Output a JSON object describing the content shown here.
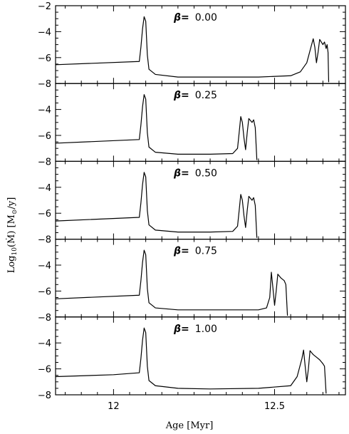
{
  "chart_data": {
    "type": "line",
    "layout": "5 vertically stacked panels sharing the x axis",
    "xlabel": "Age [Myr]",
    "ylabel": "Log10(Ṁ) [M⊙/y]",
    "ylabel_parts": {
      "log": "Log",
      "sub": "10",
      "open": "(",
      "mdot": "Ṁ",
      "close": ")",
      "unit_open": " [M",
      "sun": "⊙",
      "unit_close": "/y]"
    },
    "xlim": [
      11.82,
      12.72
    ],
    "ylim": [
      -8,
      -2
    ],
    "x_ticks": [
      12,
      12.5
    ],
    "x_tick_labels": [
      "12",
      "12.5"
    ],
    "y_ticks_top_panel": [
      -8,
      -6,
      -4,
      -2
    ],
    "y_ticks_other_panels": [
      -8,
      -6,
      -4
    ],
    "y_tick_labels": {
      "-8": "−8",
      "-6": "−6",
      "-4": "−4",
      "-2": "−2"
    },
    "series_color": "#000000",
    "panels": [
      {
        "label_prefix": "β=",
        "label_value": "0.00",
        "points": [
          [
            11.82,
            -6.55
          ],
          [
            12.08,
            -6.3
          ],
          [
            12.085,
            -5.2
          ],
          [
            12.09,
            -3.8
          ],
          [
            12.095,
            -2.85
          ],
          [
            12.1,
            -3.2
          ],
          [
            12.105,
            -5.8
          ],
          [
            12.11,
            -6.9
          ],
          [
            12.13,
            -7.3
          ],
          [
            12.2,
            -7.5
          ],
          [
            12.3,
            -7.5
          ],
          [
            12.45,
            -7.5
          ],
          [
            12.55,
            -7.4
          ],
          [
            12.58,
            -7.1
          ],
          [
            12.6,
            -6.4
          ],
          [
            12.615,
            -5.0
          ],
          [
            12.62,
            -4.55
          ],
          [
            12.625,
            -5.2
          ],
          [
            12.63,
            -6.4
          ],
          [
            12.635,
            -5.6
          ],
          [
            12.64,
            -4.6
          ],
          [
            12.65,
            -5.0
          ],
          [
            12.655,
            -4.8
          ],
          [
            12.66,
            -5.3
          ],
          [
            12.663,
            -5.0
          ],
          [
            12.666,
            -5.6
          ],
          [
            12.668,
            -7.9
          ]
        ]
      },
      {
        "label_prefix": "β=",
        "label_value": "0.25",
        "points": [
          [
            11.82,
            -6.6
          ],
          [
            12.08,
            -6.32
          ],
          [
            12.085,
            -5.2
          ],
          [
            12.09,
            -3.8
          ],
          [
            12.095,
            -2.85
          ],
          [
            12.1,
            -3.2
          ],
          [
            12.105,
            -5.8
          ],
          [
            12.11,
            -6.9
          ],
          [
            12.13,
            -7.3
          ],
          [
            12.2,
            -7.45
          ],
          [
            12.3,
            -7.45
          ],
          [
            12.37,
            -7.4
          ],
          [
            12.385,
            -7.0
          ],
          [
            12.39,
            -5.8
          ],
          [
            12.395,
            -4.55
          ],
          [
            12.4,
            -5.0
          ],
          [
            12.405,
            -6.2
          ],
          [
            12.41,
            -7.1
          ],
          [
            12.415,
            -5.8
          ],
          [
            12.42,
            -4.7
          ],
          [
            12.43,
            -5.0
          ],
          [
            12.435,
            -4.8
          ],
          [
            12.44,
            -5.4
          ],
          [
            12.445,
            -7.9
          ]
        ]
      },
      {
        "label_prefix": "β=",
        "label_value": "0.50",
        "points": [
          [
            11.82,
            -6.6
          ],
          [
            12.08,
            -6.32
          ],
          [
            12.085,
            -5.2
          ],
          [
            12.09,
            -3.8
          ],
          [
            12.095,
            -2.85
          ],
          [
            12.1,
            -3.2
          ],
          [
            12.105,
            -5.8
          ],
          [
            12.11,
            -6.9
          ],
          [
            12.13,
            -7.3
          ],
          [
            12.2,
            -7.45
          ],
          [
            12.3,
            -7.45
          ],
          [
            12.37,
            -7.4
          ],
          [
            12.385,
            -7.0
          ],
          [
            12.39,
            -5.8
          ],
          [
            12.395,
            -4.55
          ],
          [
            12.4,
            -5.0
          ],
          [
            12.405,
            -6.2
          ],
          [
            12.41,
            -7.1
          ],
          [
            12.415,
            -5.8
          ],
          [
            12.42,
            -4.7
          ],
          [
            12.43,
            -5.0
          ],
          [
            12.435,
            -4.8
          ],
          [
            12.44,
            -5.4
          ],
          [
            12.445,
            -7.9
          ]
        ]
      },
      {
        "label_prefix": "β=",
        "label_value": "0.75",
        "points": [
          [
            11.82,
            -6.6
          ],
          [
            12.08,
            -6.32
          ],
          [
            12.085,
            -5.2
          ],
          [
            12.09,
            -3.8
          ],
          [
            12.095,
            -2.85
          ],
          [
            12.1,
            -3.2
          ],
          [
            12.105,
            -5.8
          ],
          [
            12.11,
            -6.9
          ],
          [
            12.13,
            -7.3
          ],
          [
            12.2,
            -7.45
          ],
          [
            12.3,
            -7.45
          ],
          [
            12.45,
            -7.45
          ],
          [
            12.475,
            -7.3
          ],
          [
            12.485,
            -6.5
          ],
          [
            12.49,
            -4.55
          ],
          [
            12.495,
            -5.8
          ],
          [
            12.5,
            -7.1
          ],
          [
            12.505,
            -6.0
          ],
          [
            12.51,
            -4.7
          ],
          [
            12.52,
            -5.0
          ],
          [
            12.53,
            -5.2
          ],
          [
            12.535,
            -5.5
          ],
          [
            12.54,
            -7.9
          ]
        ]
      },
      {
        "label_prefix": "β=",
        "label_value": "1.00",
        "points": [
          [
            11.82,
            -6.6
          ],
          [
            12.0,
            -6.45
          ],
          [
            12.08,
            -6.3
          ],
          [
            12.085,
            -5.2
          ],
          [
            12.09,
            -3.8
          ],
          [
            12.095,
            -2.85
          ],
          [
            12.1,
            -3.2
          ],
          [
            12.105,
            -5.8
          ],
          [
            12.11,
            -6.9
          ],
          [
            12.13,
            -7.3
          ],
          [
            12.2,
            -7.5
          ],
          [
            12.3,
            -7.55
          ],
          [
            12.45,
            -7.5
          ],
          [
            12.55,
            -7.3
          ],
          [
            12.57,
            -6.6
          ],
          [
            12.585,
            -5.2
          ],
          [
            12.59,
            -4.55
          ],
          [
            12.595,
            -5.8
          ],
          [
            12.6,
            -7.0
          ],
          [
            12.605,
            -6.0
          ],
          [
            12.61,
            -4.6
          ],
          [
            12.62,
            -4.9
          ],
          [
            12.63,
            -5.1
          ],
          [
            12.64,
            -5.3
          ],
          [
            12.65,
            -5.6
          ],
          [
            12.655,
            -5.8
          ],
          [
            12.66,
            -7.9
          ]
        ]
      }
    ]
  }
}
